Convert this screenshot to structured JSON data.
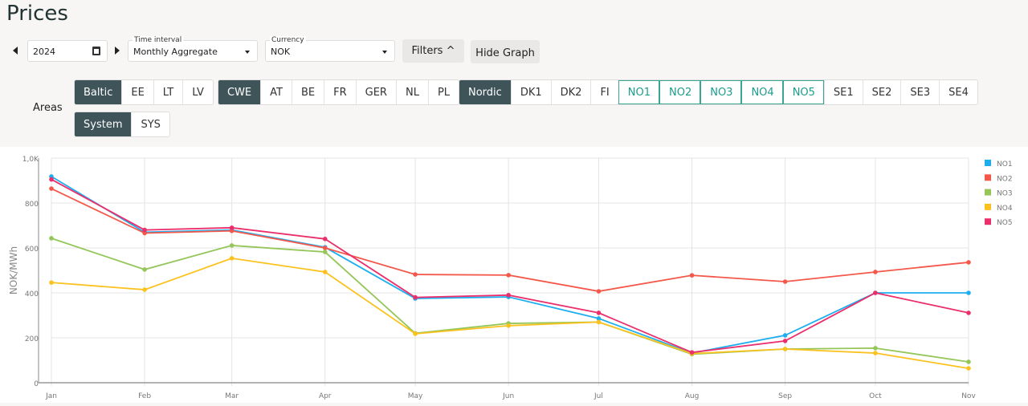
{
  "page": {
    "title": "Prices"
  },
  "controls": {
    "year": "2024",
    "time_interval_label": "Time interval",
    "time_interval_value": "Monthly Aggregate",
    "currency_label": "Currency",
    "currency_value": "NOK",
    "filters_label": "Filters",
    "hide_graph_label": "Hide Graph"
  },
  "areas": {
    "label": "Areas",
    "groups": [
      {
        "items": [
          "Baltic",
          "EE",
          "LT",
          "LV"
        ],
        "active": [
          "Baltic"
        ]
      },
      {
        "items": [
          "CWE",
          "AT",
          "BE",
          "FR",
          "GER",
          "NL",
          "PL"
        ],
        "active": [
          "CWE"
        ]
      },
      {
        "items": [
          "Nordic",
          "DK1",
          "DK2",
          "FI",
          "NO1",
          "NO2",
          "NO3",
          "NO4",
          "NO5",
          "SE1",
          "SE2",
          "SE3",
          "SE4"
        ],
        "active": [
          "Nordic"
        ],
        "selected": [
          "NO1",
          "NO2",
          "NO3",
          "NO4",
          "NO5"
        ]
      },
      {
        "items": [
          "System",
          "SYS"
        ],
        "active": [
          "System"
        ]
      }
    ]
  },
  "chart_data": {
    "type": "line",
    "ylabel": "NOK/MWh",
    "ylim": [
      0,
      1000
    ],
    "yticks": [
      "0",
      "200",
      "400",
      "600",
      "800",
      "1,0K"
    ],
    "ytick_values": [
      0,
      200,
      400,
      600,
      800,
      1000
    ],
    "x": [
      "2024-01-01",
      "2024-02-01",
      "2024-03-01",
      "2024-04-01",
      "2024-05-01",
      "2024-06-01",
      "2024-07-01",
      "2024-08-01",
      "2024-09-01",
      "2024-10-01",
      "2024-11-01"
    ],
    "xticks": [
      "Jan",
      "Feb",
      "Mar",
      "Apr",
      "May",
      "Jun",
      "Jul",
      "Aug",
      "Sep",
      "Oct",
      "Nov"
    ],
    "grid": true,
    "legend_position": "right",
    "series": [
      {
        "name": "NO1",
        "color": "#1eaef0",
        "values": [
          918,
          670,
          680,
          603,
          375,
          382,
          286,
          132,
          211,
          400,
          400
        ]
      },
      {
        "name": "NO2",
        "color": "#f4584a",
        "values": [
          864,
          666,
          676,
          600,
          482,
          479,
          407,
          478,
          450,
          493,
          536
        ]
      },
      {
        "name": "NO3",
        "color": "#95c659",
        "values": [
          643,
          504,
          611,
          582,
          220,
          264,
          270,
          127,
          150,
          154,
          93
        ]
      },
      {
        "name": "NO4",
        "color": "#fbc21f",
        "values": [
          446,
          414,
          554,
          493,
          218,
          254,
          270,
          130,
          150,
          132,
          64
        ]
      },
      {
        "name": "NO5",
        "color": "#ea2f6b",
        "values": [
          905,
          680,
          690,
          640,
          380,
          390,
          311,
          135,
          186,
          400,
          311
        ]
      }
    ]
  }
}
